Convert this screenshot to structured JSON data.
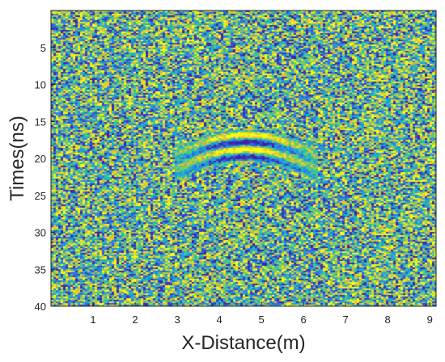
{
  "chart_data": {
    "type": "heatmap",
    "title": "",
    "xlabel": "X-Distance(m)",
    "ylabel": "Times(ns)",
    "xlim": [
      0,
      9.15
    ],
    "ylim": [
      0,
      40
    ],
    "y_direction": "reversed",
    "x_ticks": [
      1,
      2,
      3,
      4,
      5,
      6,
      7,
      8,
      9
    ],
    "y_ticks": [
      5,
      10,
      15,
      20,
      25,
      30,
      35,
      40
    ],
    "grid": false,
    "colormap": [
      "#3e26a8",
      "#2a7ff2",
      "#17b8c6",
      "#6fcb6c",
      "#e3c02f",
      "#f9fb15"
    ],
    "background_level": "noise",
    "feature": {
      "description": "hyperbolic reflection",
      "apex_x": 4.6,
      "apex_t": 18.2,
      "x_range": [
        2.9,
        6.3
      ]
    }
  }
}
